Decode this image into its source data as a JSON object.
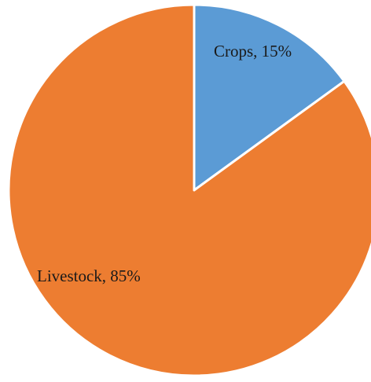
{
  "chart_data": {
    "type": "pie",
    "title": "",
    "slices": [
      {
        "label": "Crops",
        "value": 15,
        "display": "Crops, 15%",
        "color": "#5b9bd5"
      },
      {
        "label": "Livestock",
        "value": 85,
        "display": "Livestock, 85%",
        "color": "#ed7d31"
      }
    ],
    "start_angle_deg": 0,
    "direction": "clockwise",
    "border_color": "#ffffff",
    "legend": "none"
  }
}
